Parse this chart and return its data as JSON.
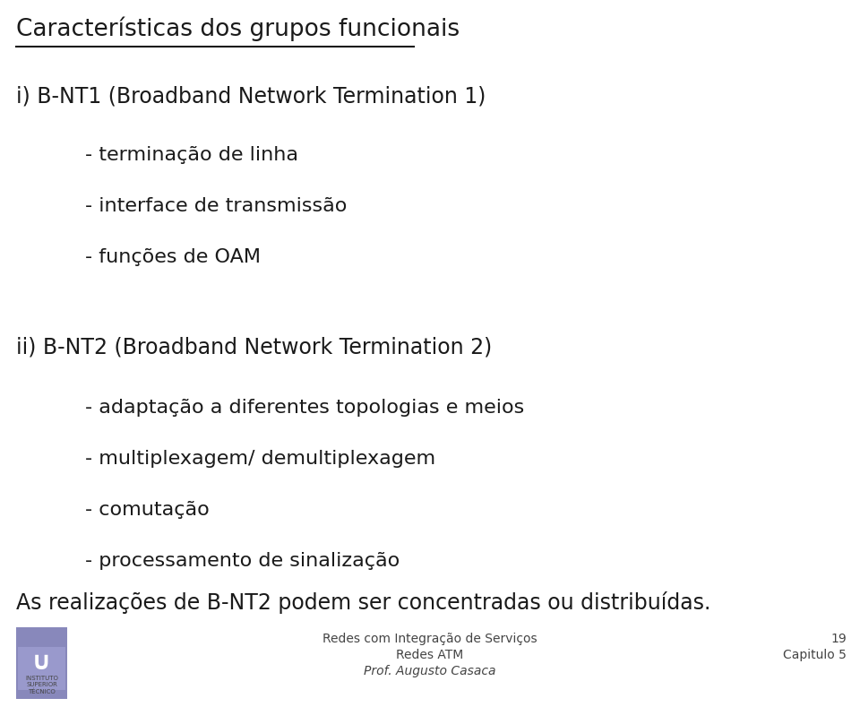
{
  "bg_color": "#ffffff",
  "text_color": "#1a1a1a",
  "title": "Características dos grupos funcionais",
  "title_fontsize": 19,
  "section1_heading": "i) B-NT1 (Broadband Network Termination 1)",
  "section1_fontsize": 17,
  "section1_bullets": [
    "- terminação de linha",
    "- interface de transmissão",
    "- funções de OAM"
  ],
  "section1_bullet_fontsize": 16,
  "section2_heading": "ii) B-NT2 (Broadband Network Termination 2)",
  "section2_fontsize": 17,
  "section2_bullets": [
    "- adaptação a diferentes topologias e meios",
    "- multiplexagem/ demultiplexagem",
    "- comutação",
    "- processamento de sinalização"
  ],
  "section2_bullet_fontsize": 16,
  "closing_text": "As realizações de B-NT2 podem ser concentradas ou distribuídas.",
  "closing_fontsize": 17,
  "footer_center_line1": "Redes com Integração de Serviços",
  "footer_center_line2": "Redes ATM",
  "footer_center_line3": "Prof. Augusto Casaca",
  "footer_right_line1": "19",
  "footer_right_line2": "Capitulo 5",
  "footer_fontsize": 10,
  "logo_color_top": "#7878aa",
  "logo_color_bottom": "#5a5a8a",
  "font_family": "DejaVu Sans"
}
